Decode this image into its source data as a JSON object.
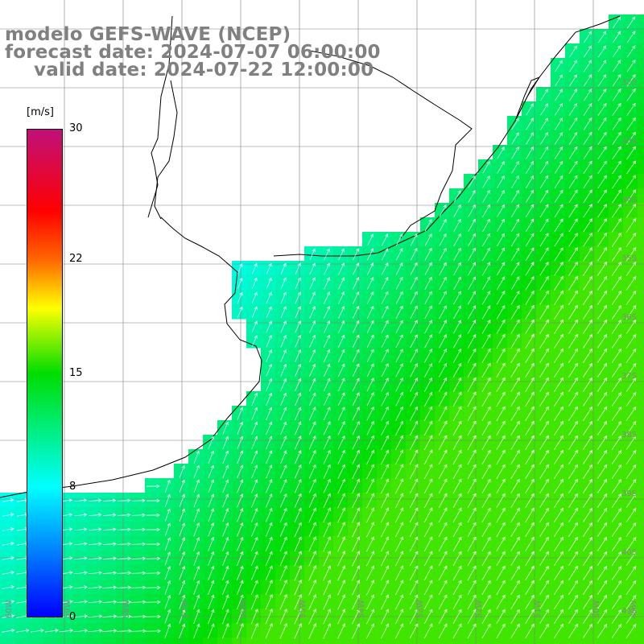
{
  "title": {
    "model": "modelo GEFS-WAVE (NCEP)",
    "forecast": "forecast date: 2024-07-07 06:00:00",
    "valid": "valid date: 2024-07-22 12:00:00"
  },
  "colorbar": {
    "unit": "[m/s]",
    "ticks": [
      {
        "label": "30",
        "value": 30
      },
      {
        "label": "22",
        "value": 22
      },
      {
        "label": "15",
        "value": 15
      },
      {
        "label": "8",
        "value": 8
      },
      {
        "label": "0",
        "value": 0
      }
    ],
    "stops": [
      {
        "value": 0,
        "color": "#0000ff"
      },
      {
        "value": 8,
        "color": "#00ffff"
      },
      {
        "value": 15,
        "color": "#00dd00"
      },
      {
        "value": 19,
        "color": "#ffff00"
      },
      {
        "value": 22,
        "color": "#ff6600"
      },
      {
        "value": 25,
        "color": "#ff0000"
      },
      {
        "value": 30,
        "color": "#c0107a"
      }
    ]
  },
  "latitude_labels": [
    "32S",
    "33S",
    "34S",
    "35S",
    "36S",
    "37S",
    "38S",
    "39S",
    "40S",
    "41S"
  ],
  "longitude_labels": [
    "60W",
    "59W",
    "58W",
    "57W",
    "56W",
    "55W",
    "54W",
    "53W",
    "52W",
    "51W",
    "50W",
    "49W"
  ],
  "colors": {
    "land": "#ffffff",
    "coastline": "#000000",
    "grid": "#7f7f7f",
    "arrows": "#ffffff",
    "title_text": "#808080"
  }
}
